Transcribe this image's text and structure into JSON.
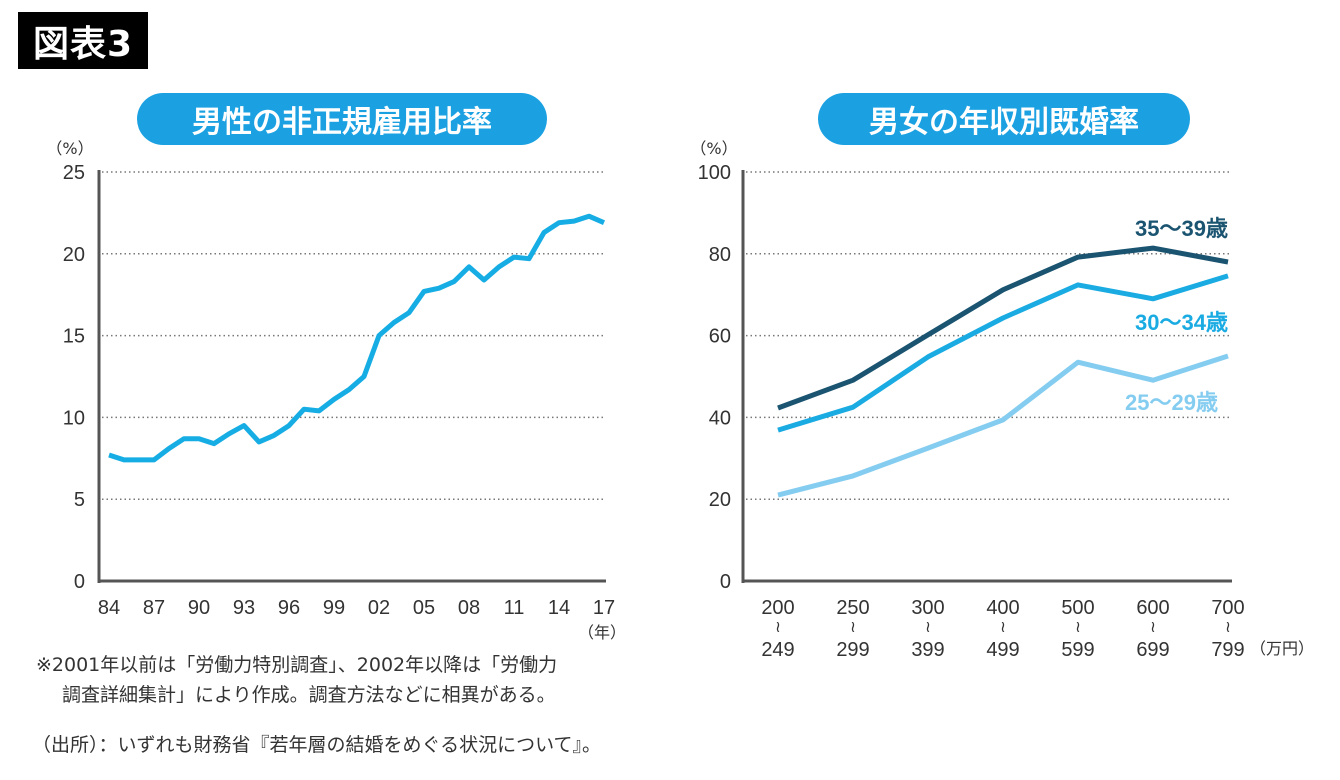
{
  "figure_label": "図表3",
  "notes": {
    "line1": "※2001年以前は「労働力特別調査」、2002年以降は「労働力",
    "line2": "調査詳細集計」により作成。調査方法などに相異がある。",
    "source": "（出所）：いずれも財務省『若年層の結婚をめぐる状況について』。"
  },
  "colors": {
    "pill": "#1ba1e2",
    "line_left": "#16ade4",
    "age_35_39": "#1a5470",
    "age_30_34": "#19abe2",
    "age_25_29": "#85cdf0",
    "axis": "#555555",
    "grid": "#777777"
  },
  "chart_data": [
    {
      "type": "line",
      "title": "男性の非正規雇用比率",
      "ylabel": "（%）",
      "xlabel": "（年）",
      "ylim": [
        0,
        25
      ],
      "yticks": [
        "0",
        "5",
        "10",
        "15",
        "20",
        "25"
      ],
      "grid": true,
      "x_tick_labels": [
        "84",
        "87",
        "90",
        "93",
        "96",
        "99",
        "02",
        "05",
        "08",
        "11",
        "14",
        "17"
      ],
      "x": [
        1984,
        1985,
        1986,
        1987,
        1988,
        1989,
        1990,
        1991,
        1992,
        1993,
        1994,
        1995,
        1996,
        1997,
        1998,
        1999,
        2000,
        2001,
        2002,
        2003,
        2004,
        2005,
        2006,
        2007,
        2008,
        2009,
        2010,
        2011,
        2012,
        2013,
        2014,
        2015,
        2016,
        2017
      ],
      "series": [
        {
          "name": "男性の非正規雇用比率",
          "values": [
            7.7,
            7.4,
            7.4,
            7.4,
            8.1,
            8.7,
            8.7,
            8.4,
            9.0,
            9.5,
            8.5,
            8.9,
            9.5,
            10.5,
            10.4,
            11.1,
            11.7,
            12.5,
            15.0,
            15.8,
            16.4,
            17.7,
            17.9,
            18.3,
            19.2,
            18.4,
            19.2,
            19.8,
            19.7,
            21.3,
            21.9,
            22.0,
            22.3,
            21.9
          ]
        }
      ]
    },
    {
      "type": "line",
      "title": "男女の年収別既婚率",
      "ylabel": "（%）",
      "xlabel": "（万円）",
      "ylim": [
        0,
        100
      ],
      "yticks": [
        "0",
        "20",
        "40",
        "60",
        "80",
        "100"
      ],
      "grid": true,
      "categories": [
        {
          "top": "200",
          "bottom": "249"
        },
        {
          "top": "250",
          "bottom": "299"
        },
        {
          "top": "300",
          "bottom": "399"
        },
        {
          "top": "400",
          "bottom": "499"
        },
        {
          "top": "500",
          "bottom": "599"
        },
        {
          "top": "600",
          "bottom": "699"
        },
        {
          "top": "700",
          "bottom": "799"
        }
      ],
      "range_mark": "〜",
      "series": [
        {
          "name": "35〜39歳",
          "key": "age_35_39",
          "values": [
            42.3,
            49.1,
            60.2,
            71.2,
            79.2,
            81.4,
            78.0
          ]
        },
        {
          "name": "30〜34歳",
          "key": "age_30_34",
          "values": [
            36.9,
            42.5,
            54.8,
            64.3,
            72.4,
            69.0,
            74.6
          ]
        },
        {
          "name": "25〜29歳",
          "key": "age_25_29",
          "values": [
            21.0,
            25.7,
            32.5,
            39.4,
            53.5,
            49.1,
            55.0
          ]
        }
      ]
    }
  ]
}
